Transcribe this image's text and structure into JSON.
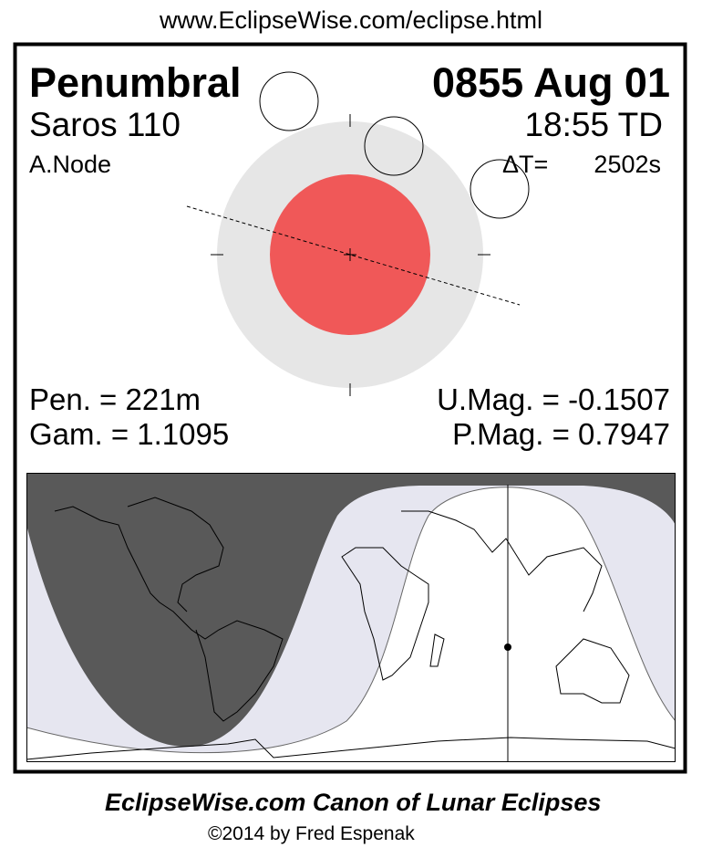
{
  "header": {
    "url": "www.EclipseWise.com/eclipse.html"
  },
  "eclipse": {
    "type": "Penumbral",
    "date": "0855 Aug 01",
    "saros": "Saros 110",
    "time": "18:55 TD",
    "node": "A.Node",
    "delta_t_label": "ΔT=",
    "delta_t_value": "2502s",
    "pen_duration": "Pen. = 221m",
    "gamma": "Gam. = 1.1095",
    "umbral_mag": "U.Mag. = -0.1507",
    "penumbral_mag": "P.Mag. = 0.7947"
  },
  "colors": {
    "umbra": "#f05858",
    "penumbra": "#e6e6e6",
    "map_night": "#595959",
    "map_penumbral": "#e6e6f0",
    "map_visible": "#ffffff"
  },
  "footer": {
    "title": "EclipseWise.com Canon of Lunar Eclipses",
    "copyright": "©2014 by Fred Espenak"
  }
}
